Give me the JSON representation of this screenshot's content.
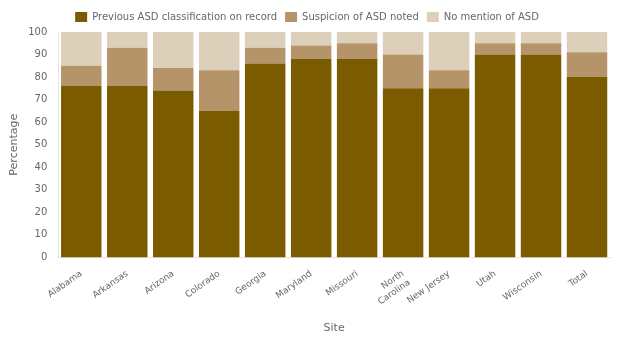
{
  "chart_data": {
    "type": "bar",
    "stacked": true,
    "categories": [
      "Alabama",
      "Arkansas",
      "Arizona",
      "Colorado",
      "Georgia",
      "Maryland",
      "Missouri",
      "North\nCarolina",
      "New Jersey",
      "Utah",
      "Wisconsin",
      "Total"
    ],
    "series": [
      {
        "name": "Previous ASD classification on record",
        "color": "#7B5B00",
        "values": [
          76,
          76,
          74,
          65,
          86,
          88,
          88,
          75,
          75,
          90,
          90,
          80
        ]
      },
      {
        "name": "Suspicion of ASD noted",
        "color": "#B49468",
        "values": [
          9,
          17,
          10,
          18,
          7,
          6,
          7,
          15,
          8,
          5,
          5,
          11
        ]
      },
      {
        "name": "No mention of ASD",
        "color": "#DDD0BB",
        "values": [
          15,
          7,
          16,
          17,
          7,
          6,
          5,
          10,
          17,
          5,
          5,
          9
        ]
      }
    ],
    "xlabel": "Site",
    "ylabel": "Percentage",
    "ylim": [
      0,
      100
    ],
    "yticks": [
      0,
      10,
      20,
      30,
      40,
      50,
      60,
      70,
      80,
      90,
      100
    ],
    "grid": false,
    "legend": "top"
  }
}
